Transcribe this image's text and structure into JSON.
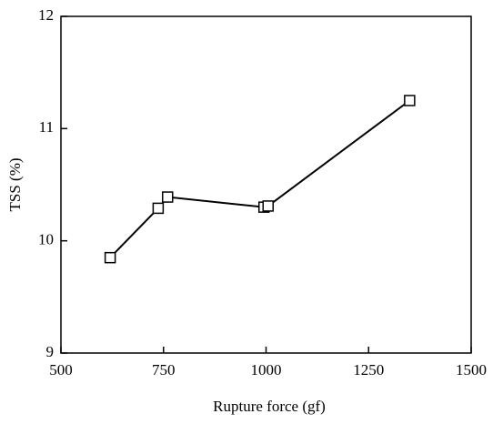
{
  "chart_data": {
    "type": "line",
    "xlabel": "Rupture force (gf)",
    "ylabel": "TSS (%)",
    "x": [
      620,
      737,
      760,
      995,
      1005,
      1350
    ],
    "series": [
      {
        "color": "#000000",
        "values": [
          9.85,
          10.29,
          10.39,
          10.3,
          10.31,
          11.25
        ]
      }
    ],
    "xlim": [
      500,
      1500
    ],
    "xticks": [
      500,
      750,
      1000,
      1250,
      1500
    ],
    "ylim": [
      9,
      12
    ],
    "yticks": [
      9,
      10,
      11,
      12
    ]
  }
}
